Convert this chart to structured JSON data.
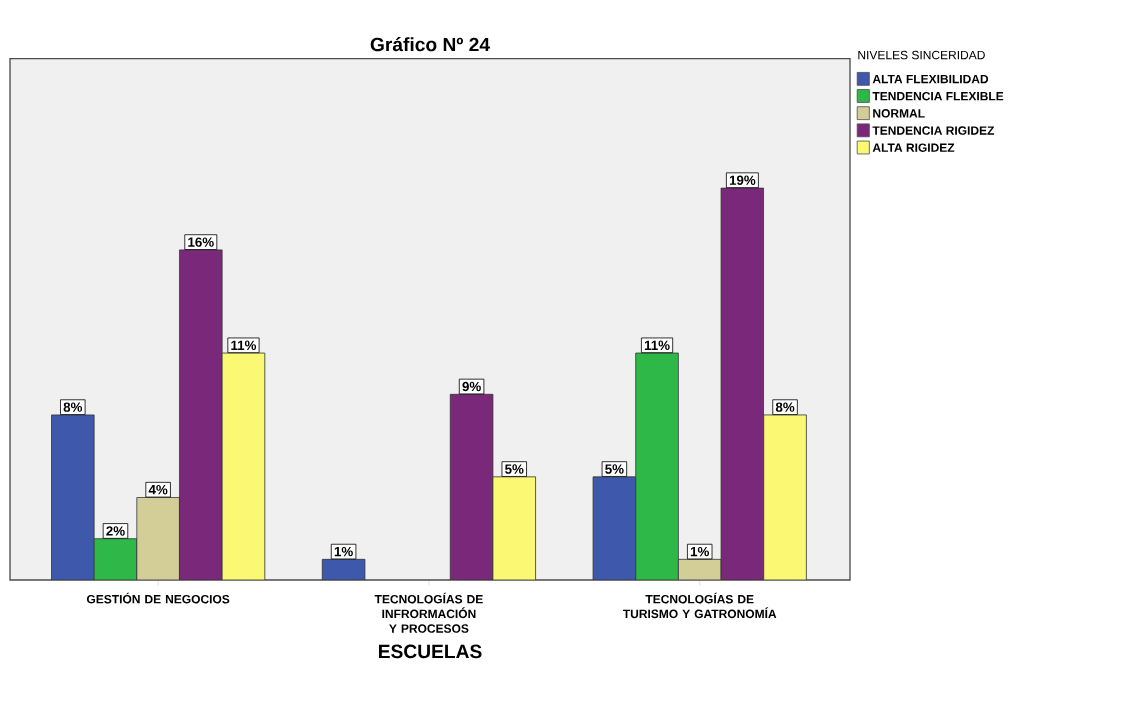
{
  "chart_data": {
    "type": "bar",
    "title": "Gráfico Nº 24",
    "xlabel": "ESCUELAS",
    "legend_title": "NIVELES SINCERIDAD",
    "legend": "top right",
    "categories": [
      "GESTIÓN DE NEGOCIOS",
      "TECNOLOGÍAS DE INFRORMACIÓN Y PROCESOS",
      "TECNOLOGÍAS DE TURISMO Y GATRONOMÍA"
    ],
    "series": [
      {
        "name": "ALTA FLEXIBILIDAD",
        "color": "#3e58ac",
        "values": [
          8,
          1,
          5
        ],
        "value_labels": [
          "8%",
          "1%",
          "5%"
        ]
      },
      {
        "name": "TENDENCIA FLEXIBLE",
        "color": "#2eb848",
        "values": [
          2,
          null,
          11
        ],
        "value_labels": [
          "2%",
          null,
          "11%"
        ]
      },
      {
        "name": "NORMAL",
        "color": "#d3ce97",
        "values": [
          4,
          null,
          1
        ],
        "value_labels": [
          "4%",
          null,
          "1%"
        ]
      },
      {
        "name": "TENDENCIA RIGIDEZ",
        "color": "#79287a",
        "values": [
          16,
          9,
          19
        ],
        "value_labels": [
          "16%",
          "9%",
          "19%"
        ]
      },
      {
        "name": "ALTA RIGIDEZ",
        "color": "#fbf873",
        "values": [
          11,
          5,
          8
        ],
        "value_labels": [
          "11%",
          "5%",
          "8%"
        ]
      }
    ]
  }
}
